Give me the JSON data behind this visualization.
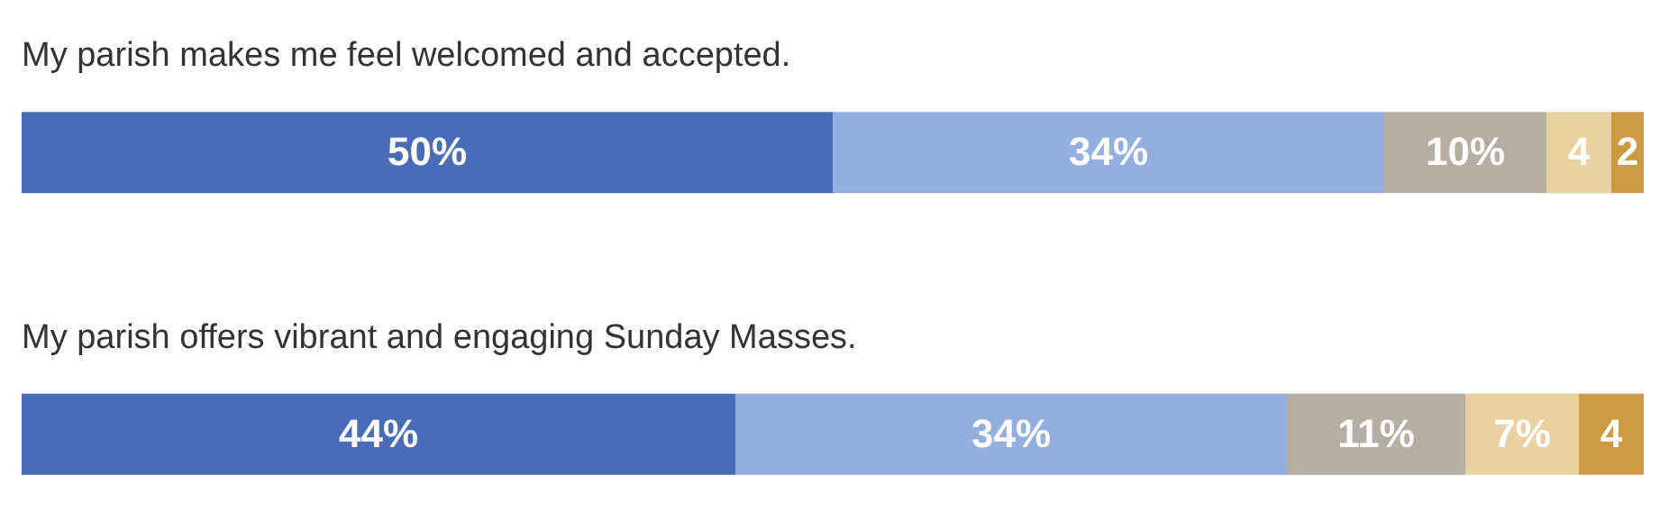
{
  "chart_data": {
    "type": "bar",
    "orientation": "horizontal",
    "stacked": true,
    "categories": [
      "My parish makes me feel welcomed and accepted.",
      "My parish offers vibrant and engaging Sunday Masses."
    ],
    "series": [
      {
        "color": "#4a6cb6",
        "values": [
          50,
          44
        ],
        "value_labels": [
          "50%",
          "44%"
        ]
      },
      {
        "color": "#94afdf",
        "values": [
          34,
          34
        ],
        "value_labels": [
          "34%",
          "34%"
        ]
      },
      {
        "color": "#b7aea3",
        "values": [
          10,
          11
        ],
        "value_labels": [
          "10%",
          "11%"
        ]
      },
      {
        "color": "#e9d1a2",
        "values": [
          4,
          7
        ],
        "value_labels": [
          "4",
          "7%"
        ]
      },
      {
        "color": "#cb9a42",
        "values": [
          2,
          4
        ],
        "value_labels": [
          "2",
          "4"
        ]
      }
    ]
  }
}
